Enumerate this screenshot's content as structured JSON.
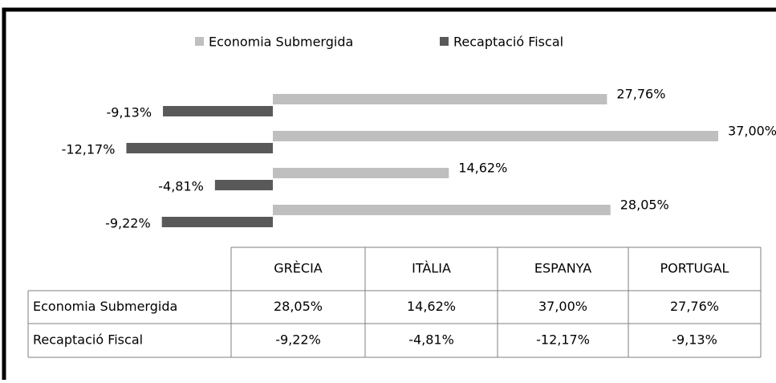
{
  "chart_data": {
    "type": "bar",
    "orientation": "horizontal",
    "categories": [
      "GRÈCIA",
      "ITÀLIA",
      "ESPANYA",
      "PORTUGAL"
    ],
    "series": [
      {
        "name": "Economia Submergida",
        "color": "#bfbfbf",
        "values": [
          28.05,
          14.62,
          37.0,
          27.76
        ],
        "value_labels": [
          "28,05%",
          "14,62%",
          "37,00%",
          "27,76%"
        ]
      },
      {
        "name": "Recaptació Fiscal",
        "color": "#595959",
        "values": [
          -9.22,
          -4.81,
          -12.17,
          -9.13
        ],
        "value_labels": [
          "-9,22%",
          "-4,81%",
          "-12,17%",
          "-9,13%"
        ]
      }
    ],
    "xlim": [
      -20,
      40
    ],
    "legend": "top",
    "data_table": true
  }
}
